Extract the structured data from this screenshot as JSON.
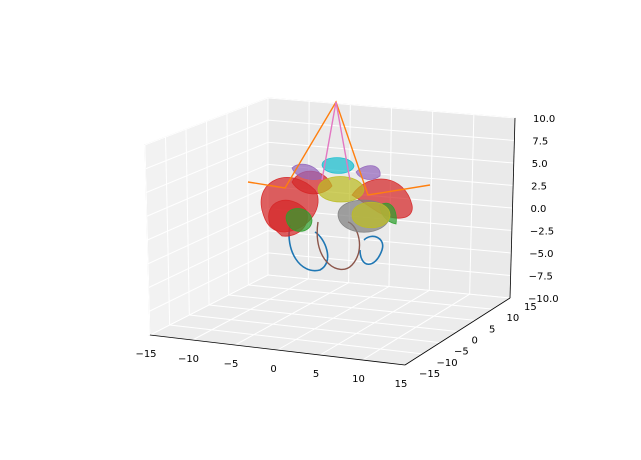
{
  "chart_data": {
    "type": "surface3d",
    "projection": "3d",
    "title": "",
    "xlabel": "",
    "ylabel": "",
    "zlabel": "",
    "xlim": [
      -15,
      15
    ],
    "ylim": [
      -15,
      15
    ],
    "zlim": [
      -10,
      10
    ],
    "x_ticks": [
      "−15",
      "−10",
      "−5",
      "0",
      "5",
      "10",
      "15"
    ],
    "y_ticks": [
      "−15",
      "−10",
      "−5",
      "0",
      "5",
      "10",
      "15"
    ],
    "z_ticks": [
      "−10.0",
      "−7.5",
      "−5.0",
      "−2.5",
      "0.0",
      "2.5",
      "5.0",
      "7.5",
      "10.0"
    ],
    "grid": true,
    "pane_color": "#f2f2f2",
    "series": [
      {
        "kind": "line",
        "color": "#1f77b4",
        "shape": "helical loops near the bottom"
      },
      {
        "kind": "line",
        "color": "#ff7f0e",
        "shape": "cone/pyramid edges rising to apex (0, 0, 10)"
      },
      {
        "kind": "line",
        "color": "#8c564b",
        "shape": "loop near the bottom center"
      },
      {
        "kind": "line",
        "color": "#e377c2",
        "shape": "vertical lines to apex"
      },
      {
        "kind": "surface",
        "color": "#d62728",
        "shape": "petal / conical shells"
      },
      {
        "kind": "surface",
        "color": "#2ca02c",
        "shape": "small green lobes"
      },
      {
        "kind": "surface",
        "color": "#9467bd",
        "shape": "purple ellipsoid blobs"
      },
      {
        "kind": "surface",
        "color": "#17becf",
        "shape": "cyan torus cap on top"
      },
      {
        "kind": "surface",
        "color": "#7f7f7f",
        "shape": "gray ring torus"
      },
      {
        "kind": "surface",
        "color": "#bcbd22",
        "shape": "olive spheres and torus"
      }
    ]
  }
}
